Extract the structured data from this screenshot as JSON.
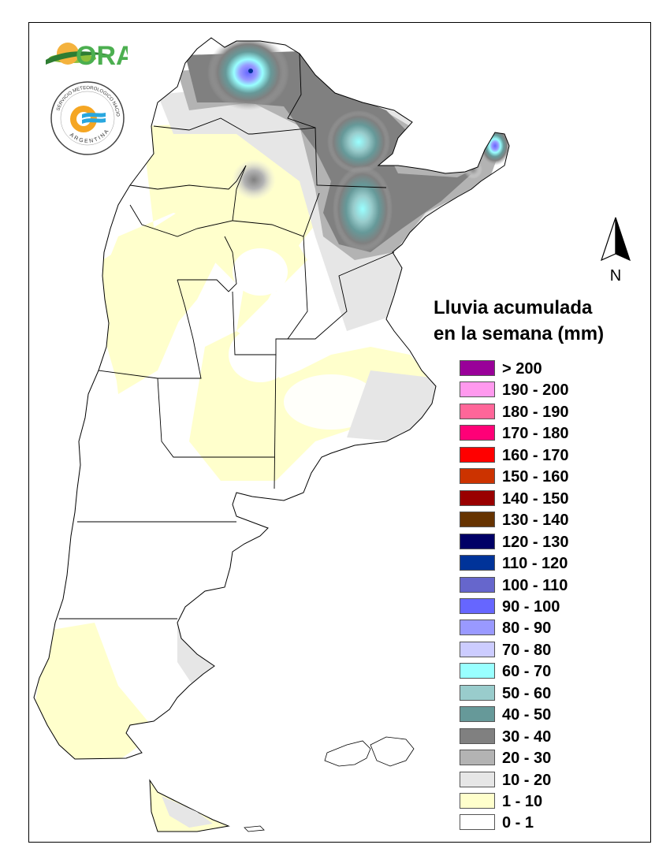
{
  "legend": {
    "title_line1": "Lluvia acumulada",
    "title_line2": "en la semana (mm)",
    "classes": [
      {
        "label": "> 200",
        "color": "#990099"
      },
      {
        "label": "190 - 200",
        "color": "#ff99ee"
      },
      {
        "label": "180 - 190",
        "color": "#ff6699"
      },
      {
        "label": "170 - 180",
        "color": "#ff0077"
      },
      {
        "label": "160 - 170",
        "color": "#ff0000"
      },
      {
        "label": "150 - 160",
        "color": "#cc3300"
      },
      {
        "label": "140 - 150",
        "color": "#990000"
      },
      {
        "label": "130 - 140",
        "color": "#663300"
      },
      {
        "label": "120 - 130",
        "color": "#000066"
      },
      {
        "label": "110 - 120",
        "color": "#003399"
      },
      {
        "label": "100 - 110",
        "color": "#6666cc"
      },
      {
        "label": "90 - 100",
        "color": "#6666ff"
      },
      {
        "label": "80 - 90",
        "color": "#9999ff"
      },
      {
        "label": "70 - 80",
        "color": "#ccccff"
      },
      {
        "label": "60 - 70",
        "color": "#99ffff"
      },
      {
        "label": "50 - 60",
        "color": "#99cccc"
      },
      {
        "label": "40 - 50",
        "color": "#669999"
      },
      {
        "label": "30 - 40",
        "color": "#808080"
      },
      {
        "label": "20 - 30",
        "color": "#b3b3b3"
      },
      {
        "label": "10 - 20",
        "color": "#e6e6e6"
      },
      {
        "label": "1 - 10",
        "color": "#ffffcc"
      },
      {
        "label": "0 - 1",
        "color": "#ffffff"
      }
    ]
  },
  "north_arrow": {
    "label": "N"
  },
  "logos": {
    "ora_text": "ORA",
    "smn_text_top": "SERVICIO METEOROLOGICO NACIONAL",
    "smn_text_bottom": "ARGENTINA"
  }
}
